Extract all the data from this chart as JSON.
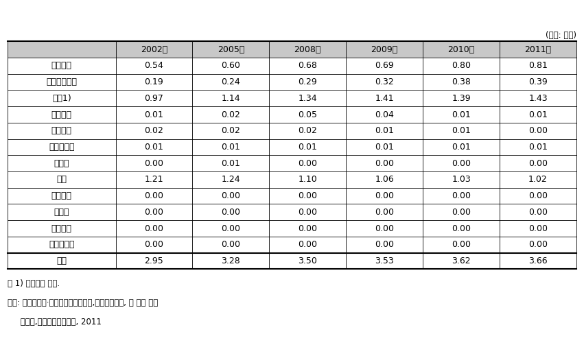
{
  "unit_label": "(단위: 대수)",
  "columns": [
    "",
    "2002년",
    "2005년",
    "2008년",
    "2009년",
    "2010년",
    "2011년"
  ],
  "rows": [
    [
      "종합병원",
      "0.54",
      "0.60",
      "0.68",
      "0.69",
      "0.80",
      "0.81"
    ],
    [
      "상급종합병원",
      "0.19",
      "0.24",
      "0.29",
      "0.32",
      "0.38",
      "0.39"
    ],
    [
      "병원1)",
      "0.97",
      "1.14",
      "1.34",
      "1.41",
      "1.39",
      "1.43"
    ],
    [
      "치과병원",
      "0.01",
      "0.02",
      "0.05",
      "0.04",
      "0.01",
      "0.01"
    ],
    [
      "한방병원",
      "0.02",
      "0.02",
      "0.02",
      "0.01",
      "0.01",
      "0.00"
    ],
    [
      "보건의료원",
      "0.01",
      "0.01",
      "0.01",
      "0.01",
      "0.01",
      "0.01"
    ],
    [
      "보건소",
      "0.00",
      "0.01",
      "0.00",
      "0.00",
      "0.00",
      "0.00"
    ],
    [
      "의원",
      "1.21",
      "1.24",
      "1.10",
      "1.06",
      "1.03",
      "1.02"
    ],
    [
      "치과의원",
      "0.00",
      "0.00",
      "0.00",
      "0.00",
      "0.00",
      "0.00"
    ],
    [
      "한의원",
      "0.00",
      "0.00",
      "0.00",
      "0.00",
      "0.00",
      "0.00"
    ],
    [
      "보건지소",
      "0.00",
      "0.00",
      "0.00",
      "0.00",
      "0.00",
      "0.00"
    ],
    [
      "보건진료소",
      "0.00",
      "0.00",
      "0.00",
      "0.00",
      "0.00",
      "0.00"
    ]
  ],
  "total_row": [
    "전체",
    "2.95",
    "3.28",
    "3.50",
    "3.53",
    "3.62",
    "3.66"
  ],
  "footnotes": [
    "주 1) 요양병원 포함.",
    "자료: 보건복지부·한국보건사회연구원,「환자조사」, 각 조사 연도",
    "     통계청,「장래인구추계」, 2011"
  ],
  "header_bg": "#c8c8c8",
  "row_bg": "#ffffff",
  "border_color": "#000000",
  "text_color": "#000000"
}
